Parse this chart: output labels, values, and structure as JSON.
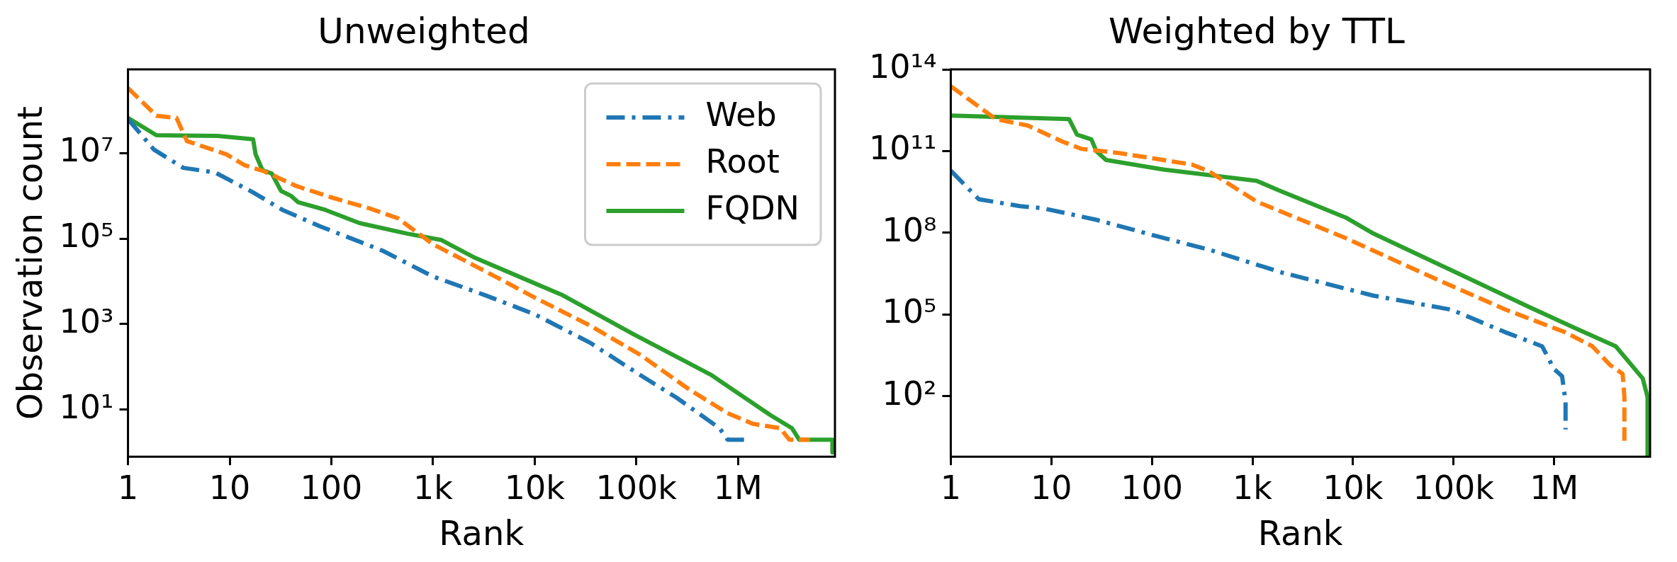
{
  "chart_data": [
    {
      "type": "line",
      "title": "Unweighted",
      "xlabel": "Rank",
      "ylabel": "Observation count",
      "log": "xy",
      "legend": "top right",
      "xlim": [
        1,
        9000000
      ],
      "xticks": [
        {
          "value": 1,
          "label": "1"
        },
        {
          "value": 10,
          "label": "10"
        },
        {
          "value": 100,
          "label": "100"
        },
        {
          "value": 1000,
          "label": "1k"
        },
        {
          "value": 10000,
          "label": "10k"
        },
        {
          "value": 100000,
          "label": "100k"
        },
        {
          "value": 1000000,
          "label": "1M"
        }
      ],
      "ylim": [
        0.8,
        900000000
      ],
      "yticks": [
        {
          "value": 10,
          "label": "10¹"
        },
        {
          "value": 1000,
          "label": "10³"
        },
        {
          "value": 100000,
          "label": "10⁵"
        },
        {
          "value": 10000000,
          "label": "10⁷"
        }
      ],
      "series": [
        {
          "name": "Web",
          "color": "#1f77b4",
          "line_style": "dashdot",
          "x": [
            1,
            1.8,
            3.5,
            7.2,
            17,
            33,
            79,
            320,
            1000,
            3300,
            10000,
            35000,
            100000,
            250000,
            660000,
            790000,
            1200000
          ],
          "values": [
            62000000,
            12000000,
            4500000,
            3500000,
            1200000,
            470000,
            190000,
            52000,
            13000,
            4700,
            1700,
            370,
            74,
            19,
            3.7,
            2,
            2
          ]
        },
        {
          "name": "Root",
          "color": "#ff7f0e",
          "line_style": "dashed",
          "x": [
            1,
            1.9,
            3,
            3.8,
            9.3,
            14,
            22,
            45,
            98,
            230,
            450,
            1000,
            3300,
            10000,
            35000,
            110000,
            330000,
            790000,
            1400000,
            2600000,
            3200000,
            5100000
          ],
          "values": [
            330000000,
            74000000,
            66000000,
            19000000,
            9300000,
            5200000,
            3700000,
            1700000,
            930000,
            520000,
            300000,
            74000,
            17000,
            4200,
            930,
            190,
            30,
            8.3,
            4.7,
            3.7,
            2,
            2
          ]
        },
        {
          "name": "FQDN",
          "color": "#2ca02c",
          "line_style": "solid",
          "x": [
            1,
            1.9,
            7.6,
            17,
            18,
            21,
            26,
            32,
            40,
            47,
            87,
            190,
            560,
            1200,
            2500,
            19000,
            93000,
            540000,
            2100000,
            3400000,
            4000000,
            8500000,
            8500000
          ],
          "values": [
            66000000,
            26000000,
            25000000,
            21000000,
            9300000,
            4000000,
            3300000,
            1300000,
            1000000,
            710000,
            470000,
            230000,
            130000,
            93000,
            37000,
            4700,
            590,
            66,
            7.4,
            3.7,
            2,
            2,
            1
          ]
        }
      ]
    },
    {
      "type": "line",
      "title": "Weighted by TTL",
      "xlabel": "Rank",
      "log": "xy",
      "xlim": [
        1,
        9000000
      ],
      "xticks": [
        {
          "value": 1,
          "label": "1"
        },
        {
          "value": 10,
          "label": "10"
        },
        {
          "value": 100,
          "label": "100"
        },
        {
          "value": 1000,
          "label": "1k"
        },
        {
          "value": 10000,
          "label": "10k"
        },
        {
          "value": 100000,
          "label": "100k"
        },
        {
          "value": 1000000,
          "label": "1M"
        }
      ],
      "ylim": [
        0.6,
        100000000000000
      ],
      "yticks": [
        {
          "value": 100,
          "label": "10²"
        },
        {
          "value": 100000,
          "label": "10⁵"
        },
        {
          "value": 100000000,
          "label": "10⁸"
        },
        {
          "value": 100000000000,
          "label": "10¹¹"
        },
        {
          "value": 100000000000000,
          "label": "10¹⁴"
        }
      ],
      "series": [
        {
          "color": "#1f77b4",
          "line_style": "dashdot",
          "x": [
            1,
            1.9,
            4.9,
            8.3,
            28,
            110,
            370,
            2000,
            16000,
            95000,
            330000,
            760000,
            1000000,
            1200000,
            1300000,
            1300000
          ],
          "values": [
            19000000000,
            1700000000,
            950000000,
            790000000,
            300000000,
            76000000,
            24000000,
            3400000,
            490000,
            150000,
            22000,
            6800,
            980,
            540,
            63,
            6
          ]
        },
        {
          "color": "#ff7f0e",
          "line_style": "dashed",
          "x": [
            1,
            2.8,
            5.8,
            13,
            20,
            47,
            250,
            370,
            1100,
            8500,
            69000,
            330000,
            1300000,
            2400000,
            3600000,
            4800000,
            5000000,
            5000000
          ],
          "values": [
            24000000000000,
            1500000000000,
            870000000000,
            220000000000,
            120000000000,
            85000000000,
            32000000000,
            18000000000,
            1400000000,
            63000000,
            1900000,
            150000,
            22000,
            6800,
            1400,
            660,
            93,
            2.3
          ]
        },
        {
          "color": "#2ca02c",
          "line_style": "solid",
          "x": [
            1,
            15,
            18,
            25,
            28,
            35,
            130,
            1100,
            1800,
            8500,
            16000,
            95000,
            560000,
            1600000,
            4100000,
            7600000,
            8500000,
            8500000
          ],
          "values": [
            2000000000000,
            1500000000000,
            400000000000,
            270000000000,
            100000000000,
            47000000000,
            21000000000,
            8100000000,
            3700000000,
            360000000,
            93000000,
            4200000,
            190000,
            32000,
            6800,
            450,
            93,
            0.6
          ]
        }
      ]
    }
  ]
}
